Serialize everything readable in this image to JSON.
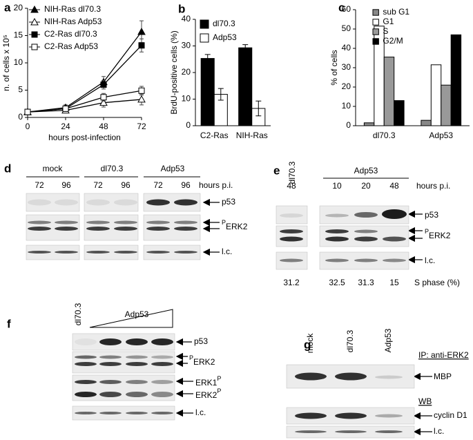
{
  "chart_data": [
    {
      "type": "line",
      "panel": "a",
      "x_label": "hours post-infection",
      "y_label": "n. of cells x 10⁵",
      "x": [
        0,
        24,
        48,
        72
      ],
      "xlim": [
        0,
        72
      ],
      "xticks": [
        0,
        24,
        48,
        72
      ],
      "ylim": [
        0,
        20
      ],
      "yticks": [
        0,
        5,
        10,
        15,
        20
      ],
      "series": [
        {
          "name": "NIH-Ras dl70.3",
          "color": "#000000",
          "marker": "triangle",
          "marker_fill": "filled",
          "values": [
            1,
            1.8,
            6.5,
            15.7
          ],
          "errors": [
            0.2,
            0.5,
            1,
            2
          ]
        },
        {
          "name": "NIH-Ras Adp53",
          "color": "#000000",
          "marker": "triangle",
          "marker_fill": "open",
          "values": [
            1,
            1.3,
            2.7,
            3.3
          ],
          "errors": [
            0.2,
            0.4,
            0.8,
            1
          ]
        },
        {
          "name": "C2-Ras dl70.3",
          "color": "#000000",
          "marker": "square",
          "marker_fill": "filled",
          "values": [
            1,
            1.6,
            6,
            13.2
          ],
          "errors": [
            0.2,
            0.4,
            0.8,
            1.2
          ]
        },
        {
          "name": "C2-Ras Adp53",
          "color": "#000000",
          "marker": "square",
          "marker_fill": "open",
          "values": [
            1,
            1.6,
            3.7,
            4.9
          ],
          "errors": [
            0.2,
            0.5,
            0.7,
            0.8
          ]
        }
      ]
    },
    {
      "type": "bar",
      "panel": "b",
      "y_label": "BrdU-positive cells (%)",
      "categories": [
        "C2-Ras",
        "NIH-Ras"
      ],
      "ylim": [
        0,
        40
      ],
      "yticks": [
        0,
        10,
        20,
        30,
        40
      ],
      "series": [
        {
          "name": "dl70.3",
          "color": "#000000",
          "values": [
            25.3,
            29.3
          ],
          "errors": [
            1.5,
            1.2
          ]
        },
        {
          "name": "Adp53",
          "color": "#ffffff",
          "values": [
            11.8,
            6.5
          ],
          "errors": [
            2.2,
            2.8
          ]
        }
      ]
    },
    {
      "type": "bar",
      "panel": "c",
      "y_label": "% of cells",
      "categories": [
        "dl70.3",
        "Adp53"
      ],
      "ylim": [
        0,
        60
      ],
      "yticks": [
        0,
        10,
        20,
        30,
        40,
        50,
        60
      ],
      "series": [
        {
          "name": "sub G1",
          "color": "#888888",
          "values": [
            1.5,
            2.8
          ]
        },
        {
          "name": "G1",
          "color": "#ffffff",
          "values": [
            51.5,
            31.5
          ]
        },
        {
          "name": "S",
          "color": "#999999",
          "values": [
            35.5,
            21
          ]
        },
        {
          "name": "G2/M",
          "color": "#000000",
          "values": [
            13,
            47
          ]
        }
      ]
    }
  ],
  "blots": {
    "d": {
      "panel": "d",
      "groups": [
        "mock",
        "dl70.3",
        "Adp53"
      ],
      "lanes": [
        72,
        96,
        72,
        96,
        72,
        96
      ],
      "lanes_label": "hours p.i.",
      "bands": [
        {
          "text": "p53"
        },
        {
          "prefix": "P",
          "text": "ERK2"
        },
        {
          "text": "l.c."
        }
      ]
    },
    "e": {
      "panel": "e",
      "groups": [
        "dl70.3",
        "Adp53"
      ],
      "lanes": [
        48,
        10,
        20,
        48
      ],
      "lanes_label": "hours p.i.",
      "bands": [
        {
          "text": "p53"
        },
        {
          "prefix": "P",
          "text": "ERK2"
        },
        {
          "text": "l.c."
        }
      ],
      "s_phase": [
        31.2,
        32.5,
        31.3,
        15
      ],
      "s_phase_label": "S phase (%)"
    },
    "f": {
      "panel": "f",
      "groups": [
        "dl70.3",
        "Adp53"
      ],
      "bands": [
        {
          "text": "p53"
        },
        {
          "prefix": "P",
          "text": "ERK2"
        },
        {
          "text": "ERK1",
          "suffix": "P"
        },
        {
          "text": "ERK2",
          "suffix": "P"
        },
        {
          "text": "l.c."
        }
      ]
    },
    "g": {
      "panel": "g",
      "lanes": [
        "mock",
        "dl70.3",
        "Adp53"
      ],
      "sections": [
        "IP: anti-ERK2",
        "WB"
      ],
      "bands": [
        {
          "text": "MBP"
        },
        {
          "text": "cyclin D1"
        },
        {
          "text": "l.c."
        }
      ]
    }
  }
}
